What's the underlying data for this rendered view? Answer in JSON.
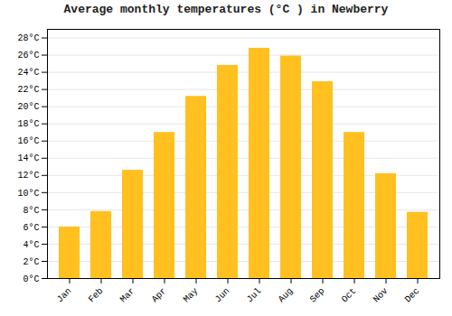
{
  "chart_data": {
    "type": "bar",
    "title": "Average monthly temperatures (°C ) in Newberry",
    "categories": [
      "Jan",
      "Feb",
      "Mar",
      "Apr",
      "May",
      "Jun",
      "Jul",
      "Aug",
      "Sep",
      "Oct",
      "Nov",
      "Dec"
    ],
    "values": [
      6.0,
      7.8,
      12.6,
      17.0,
      21.2,
      24.8,
      26.8,
      25.9,
      22.9,
      17.0,
      12.2,
      7.7
    ],
    "color": "#FFC020",
    "ylim": [
      0,
      29
    ],
    "yticks": [
      {
        "value": 0,
        "label": "0°C"
      },
      {
        "value": 2,
        "label": "2°C"
      },
      {
        "value": 4,
        "label": "4°C"
      },
      {
        "value": 6,
        "label": "6°C"
      },
      {
        "value": 8,
        "label": "8°C"
      },
      {
        "value": 10,
        "label": "10°C"
      },
      {
        "value": 12,
        "label": "12°C"
      },
      {
        "value": 14,
        "label": "14°C"
      },
      {
        "value": 16,
        "label": "16°C"
      },
      {
        "value": 18,
        "label": "18°C"
      },
      {
        "value": 20,
        "label": "20°C"
      },
      {
        "value": 22,
        "label": "22°C"
      },
      {
        "value": 24,
        "label": "24°C"
      },
      {
        "value": 26,
        "label": "26°C"
      },
      {
        "value": 28,
        "label": "28°C"
      }
    ],
    "grid": true
  }
}
